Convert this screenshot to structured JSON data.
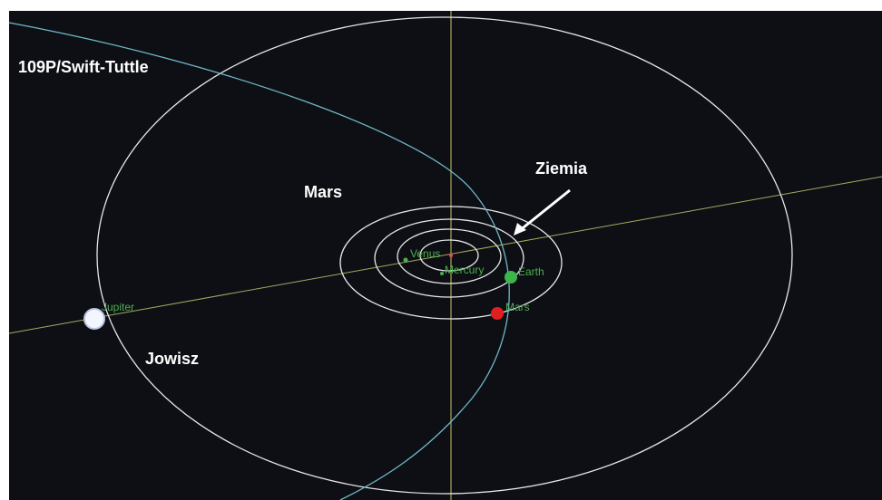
{
  "annotations": {
    "comet": "109P/Swift-Tuttle",
    "mars": "Mars",
    "earth": "Ziemia",
    "jupiter": "Jowisz"
  },
  "planet_labels": {
    "venus": "Venus",
    "mercury": "Mercury",
    "earth": "Earth",
    "mars": "Mars",
    "jupiter": "Jupiter"
  }
}
